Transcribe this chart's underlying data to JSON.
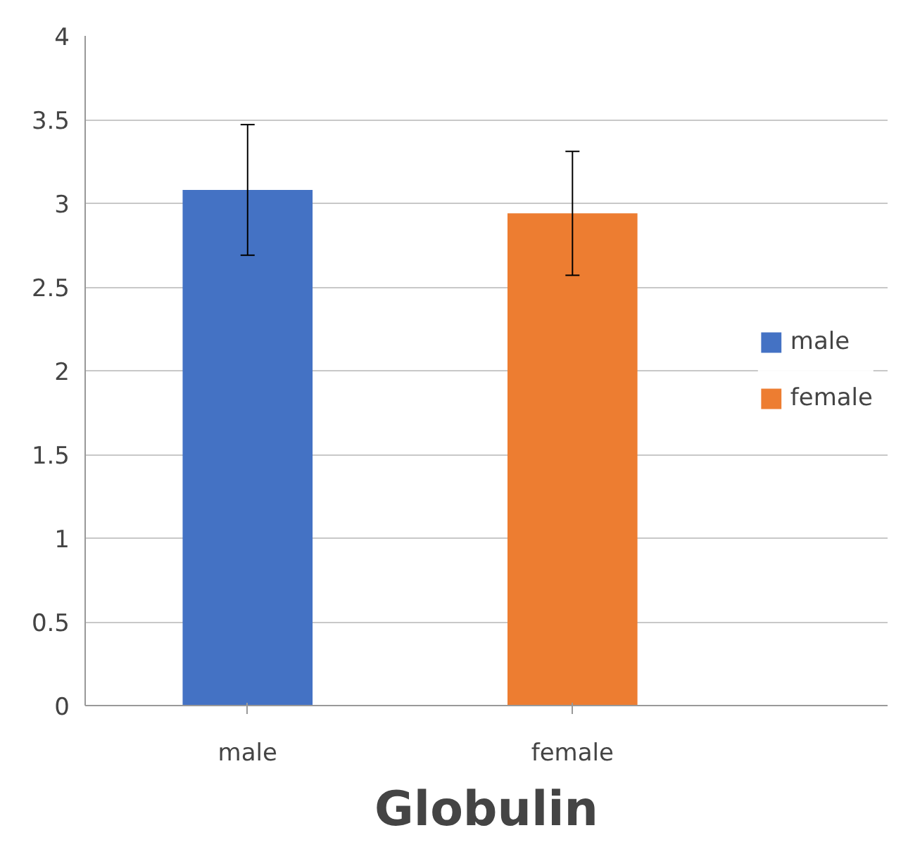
{
  "chart_data": {
    "type": "bar",
    "title": "Globulin",
    "categories": [
      "male",
      "female"
    ],
    "series": [
      {
        "name": "male",
        "color": "#4472c4",
        "values": [
          3.08,
          null
        ],
        "errors": [
          [
            2.69,
            3.47
          ],
          null
        ]
      },
      {
        "name": "female",
        "color": "#ed7d31",
        "values": [
          null,
          2.94
        ],
        "errors": [
          null,
          [
            2.57,
            3.31
          ]
        ]
      }
    ],
    "ylim": [
      0,
      4
    ],
    "yticks": [
      0,
      0.5,
      1,
      1.5,
      2,
      2.5,
      3,
      3.5,
      4
    ],
    "grid": "y",
    "legend": "right"
  }
}
